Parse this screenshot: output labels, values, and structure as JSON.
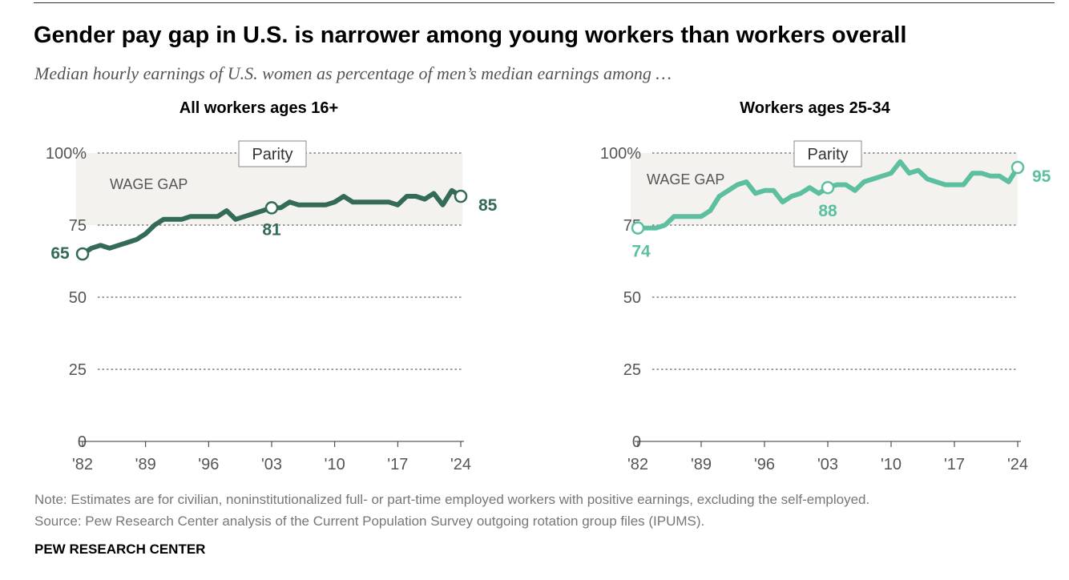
{
  "title": "Gender pay gap in U.S. is narrower among young workers than workers overall",
  "subtitle": "Median hourly earnings of U.S. women as percentage of men’s median earnings among …",
  "note": "Note: Estimates are for civilian, noninstitutionalized full- or part-time employed workers with positive earnings, excluding the self-employed.",
  "source": "Source: Pew Research Center analysis of the Current Population Survey outgoing rotation group files (IPUMS).",
  "brand": "PEW RESEARCH CENTER",
  "chart_data": [
    {
      "type": "line",
      "title": "All workers ages 16+",
      "color": "#336b57",
      "x": [
        1982,
        1983,
        1984,
        1985,
        1986,
        1987,
        1988,
        1989,
        1990,
        1991,
        1992,
        1993,
        1994,
        1995,
        1996,
        1997,
        1998,
        1999,
        2000,
        2001,
        2002,
        2003,
        2004,
        2005,
        2006,
        2007,
        2008,
        2009,
        2010,
        2011,
        2012,
        2013,
        2014,
        2015,
        2016,
        2017,
        2018,
        2019,
        2020,
        2021,
        2022,
        2023,
        2024
      ],
      "values": [
        65,
        67,
        68,
        67,
        68,
        69,
        70,
        72,
        75,
        77,
        77,
        77,
        78,
        78,
        78,
        78,
        80,
        77,
        78,
        79,
        80,
        81,
        81,
        83,
        82,
        82,
        82,
        82,
        83,
        85,
        83,
        83,
        83,
        83,
        83,
        82,
        85,
        85,
        84,
        86,
        82,
        87,
        85
      ],
      "ylim": [
        0,
        100
      ],
      "yticks": [
        "0",
        "25",
        "50",
        "75",
        "100%"
      ],
      "xticks": [
        "'82",
        "'89",
        "'96",
        "'03",
        "'10",
        "'17",
        "'24"
      ],
      "shaded_band": "WAGE GAP",
      "parity_label": "Parity",
      "callouts": [
        {
          "year": 1982,
          "value": 65,
          "label": "65"
        },
        {
          "year": 2003,
          "value": 81,
          "label": "81"
        },
        {
          "year": 2024,
          "value": 85,
          "label": "85"
        }
      ]
    },
    {
      "type": "line",
      "title": "Workers ages 25-34",
      "color": "#5cbf9f",
      "x": [
        1982,
        1983,
        1984,
        1985,
        1986,
        1987,
        1988,
        1989,
        1990,
        1991,
        1992,
        1993,
        1994,
        1995,
        1996,
        1997,
        1998,
        1999,
        2000,
        2001,
        2002,
        2003,
        2004,
        2005,
        2006,
        2007,
        2008,
        2009,
        2010,
        2011,
        2012,
        2013,
        2014,
        2015,
        2016,
        2017,
        2018,
        2019,
        2020,
        2021,
        2022,
        2023,
        2024
      ],
      "values": [
        74,
        74,
        74,
        75,
        78,
        78,
        78,
        78,
        80,
        85,
        87,
        89,
        90,
        86,
        87,
        87,
        83,
        85,
        86,
        88,
        86,
        88,
        89,
        89,
        87,
        90,
        91,
        92,
        93,
        97,
        93,
        94,
        91,
        90,
        89,
        89,
        89,
        93,
        93,
        92,
        92,
        90,
        95
      ],
      "ylim": [
        0,
        100
      ],
      "yticks": [
        "0",
        "25",
        "50",
        "75",
        "100%"
      ],
      "xticks": [
        "'82",
        "'89",
        "'96",
        "'03",
        "'10",
        "'17",
        "'24"
      ],
      "shaded_band": "WAGE GAP",
      "parity_label": "Parity",
      "callouts": [
        {
          "year": 1982,
          "value": 74,
          "label": "74"
        },
        {
          "year": 2003,
          "value": 88,
          "label": "88"
        },
        {
          "year": 2024,
          "value": 95,
          "label": "95"
        }
      ]
    }
  ]
}
